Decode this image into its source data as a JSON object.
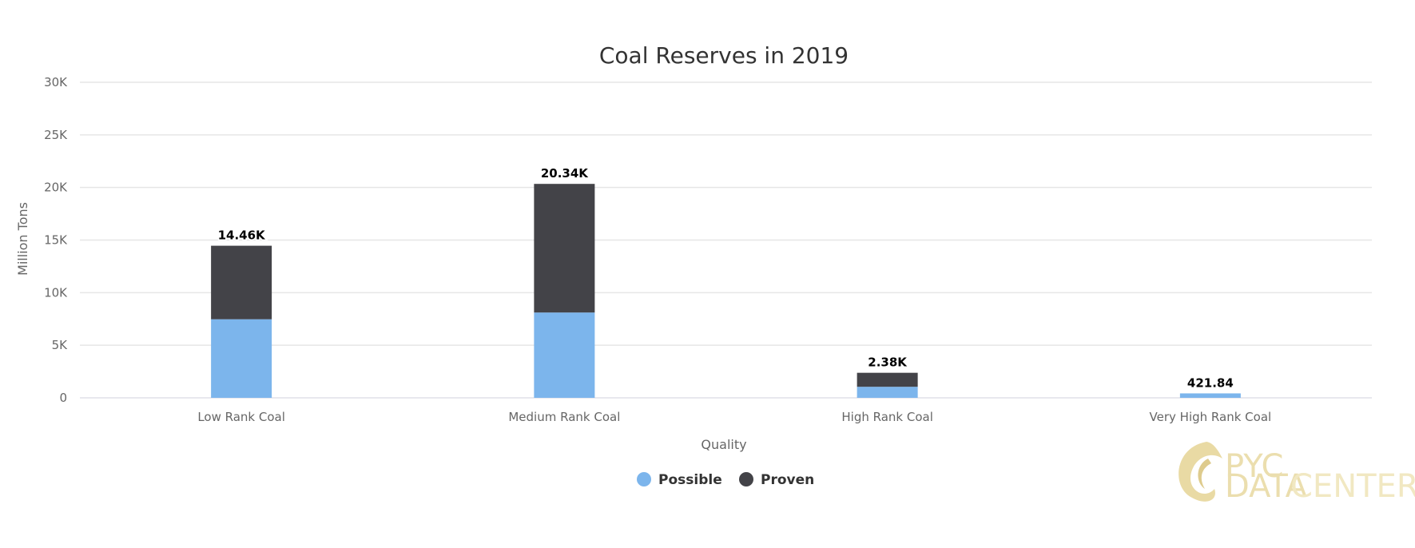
{
  "chart_data": {
    "type": "bar",
    "stacked": true,
    "title": "Coal Reserves in 2019",
    "xlabel": "Quality",
    "ylabel": "Million Tons",
    "categories": [
      "Low Rank Coal",
      "Medium Rank Coal",
      "High Rank Coal",
      "Very High Rank Coal"
    ],
    "series": [
      {
        "name": "Possible",
        "values": [
          7470,
          8110,
          1050,
          421.84
        ],
        "color": "#7cb5ec"
      },
      {
        "name": "Proven",
        "values": [
          6990,
          12230,
          1330,
          0
        ],
        "color": "#434348"
      }
    ],
    "totals_labels": [
      "14.46K",
      "20.34K",
      "2.38K",
      "421.84"
    ],
    "ylim": [
      0,
      30000
    ],
    "yticks": [
      0,
      5000,
      10000,
      15000,
      20000,
      25000,
      30000
    ],
    "ytick_labels": [
      "0",
      "5K",
      "10K",
      "15K",
      "20K",
      "25K",
      "30K"
    ],
    "grid": true,
    "legend_position": "bottom-center"
  },
  "watermark": {
    "line1": "PYC",
    "line2_part1": "DATA",
    "line2_part2": "CENTER"
  }
}
